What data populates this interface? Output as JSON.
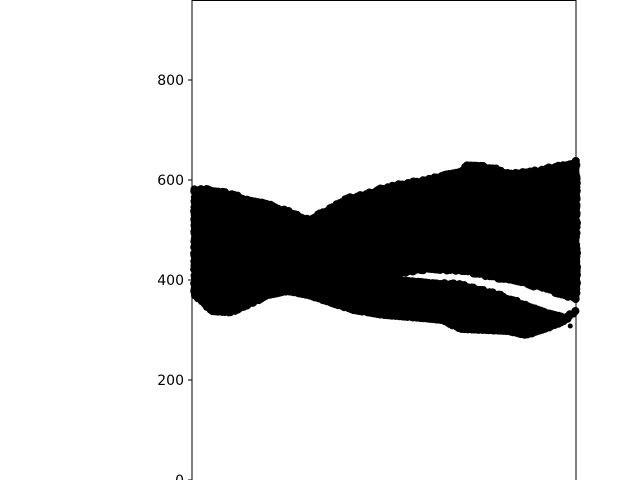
{
  "chart_data": {
    "type": "scatter",
    "title": "",
    "xlabel": "",
    "ylabel": "",
    "ylim": [
      0,
      960
    ],
    "y_ticks": [
      "0",
      "200",
      "400",
      "600",
      "800"
    ],
    "x_ticks": [],
    "grid": false,
    "marker_color": "#000000",
    "series": [
      {
        "description_of_region": "dense point cloud",
        "upper_boundary": [
          [
            0,
            583
          ],
          [
            0.05,
            582
          ],
          [
            0.1,
            574
          ],
          [
            0.15,
            560
          ],
          [
            0.18,
            555
          ],
          [
            0.22,
            548
          ],
          [
            0.3,
            522
          ],
          [
            0.33,
            532
          ],
          [
            0.4,
            563
          ],
          [
            0.48,
            580
          ],
          [
            0.52,
            590
          ],
          [
            0.6,
            600
          ],
          [
            0.7,
            620
          ],
          [
            0.72,
            632
          ],
          [
            0.78,
            626
          ],
          [
            0.82,
            614
          ],
          [
            0.9,
            620
          ],
          [
            1.0,
            638
          ]
        ],
        "lower_boundary": [
          [
            0,
            375
          ],
          [
            0.05,
            338
          ],
          [
            0.1,
            335
          ],
          [
            0.15,
            352
          ],
          [
            0.2,
            370
          ],
          [
            0.25,
            378
          ],
          [
            0.3,
            370
          ],
          [
            0.35,
            358
          ],
          [
            0.42,
            340
          ],
          [
            0.5,
            330
          ],
          [
            0.58,
            325
          ],
          [
            0.65,
            320
          ],
          [
            0.7,
            302
          ],
          [
            0.76,
            300
          ],
          [
            0.82,
            298
          ],
          [
            0.87,
            290
          ],
          [
            0.92,
            302
          ],
          [
            0.97,
            318
          ],
          [
            1.0,
            338
          ]
        ],
        "gap_upper": [
          [
            0.54,
            412
          ],
          [
            0.62,
            420
          ],
          [
            0.7,
            418
          ],
          [
            0.8,
            402
          ],
          [
            0.9,
            385
          ],
          [
            0.97,
            368
          ],
          [
            1.0,
            360
          ]
        ],
        "gap_lower": [
          [
            0.54,
            403
          ],
          [
            0.62,
            398
          ],
          [
            0.7,
            392
          ],
          [
            0.8,
            372
          ],
          [
            0.9,
            342
          ],
          [
            0.97,
            325
          ],
          [
            1.0,
            340
          ]
        ],
        "outlier": [
          0.985,
          308
        ]
      }
    ]
  }
}
